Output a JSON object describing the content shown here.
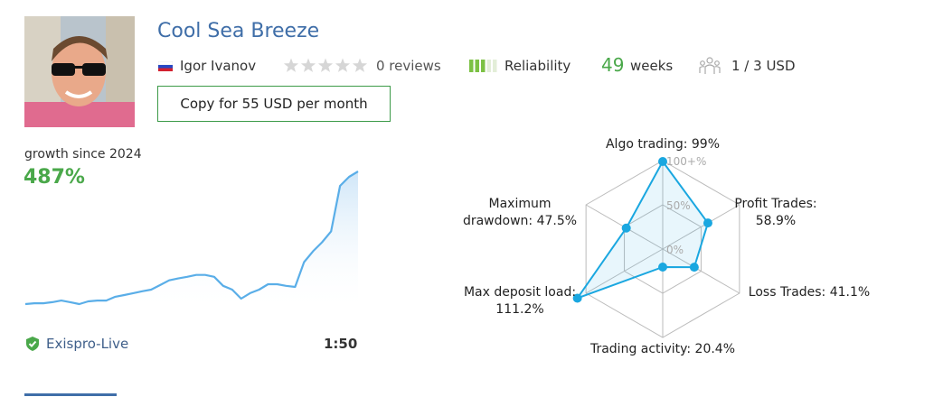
{
  "header": {
    "title": "Cool Sea Breeze",
    "author": "Igor Ivanov",
    "reviews": "0 reviews",
    "reliability": "Reliability",
    "reliability_level": 3,
    "weeks_value": 49,
    "weeks_label": "weeks",
    "subscription": "1 / 3 USD",
    "copy_button": "Copy for 55 USD per month"
  },
  "growth": {
    "label": "growth since 2024",
    "value": "487%",
    "broker": "Exispro-Live",
    "leverage": "1:50"
  },
  "chart_data": [
    {
      "type": "area",
      "color": "#5aaee8",
      "values": [
        0,
        3,
        3,
        7,
        13,
        7,
        0,
        10,
        13,
        13,
        27,
        33,
        40,
        47,
        53,
        70,
        87,
        94,
        100,
        107,
        107,
        100,
        67,
        53,
        20,
        40,
        53,
        73,
        73,
        67,
        63,
        154,
        194,
        227,
        267,
        434,
        467,
        487
      ]
    },
    {
      "type": "radar",
      "color": "#1aa7e0",
      "rlim": [
        0,
        100
      ],
      "rticks": [
        {
          "value": 0,
          "label": "0%"
        },
        {
          "value": 50,
          "label": "50%"
        },
        {
          "value": 100,
          "label": "100+%"
        }
      ],
      "categories": [
        "Algo trading: 99%",
        "Profit Trades: 58.9%",
        "Loss Trades: 41.1%",
        "Trading activity: 20.4%",
        "Max deposit load: 111.2%",
        "Maximum drawdown: 47.5%"
      ],
      "values": [
        99,
        58.9,
        41.1,
        20.4,
        111.2,
        47.5
      ]
    }
  ]
}
